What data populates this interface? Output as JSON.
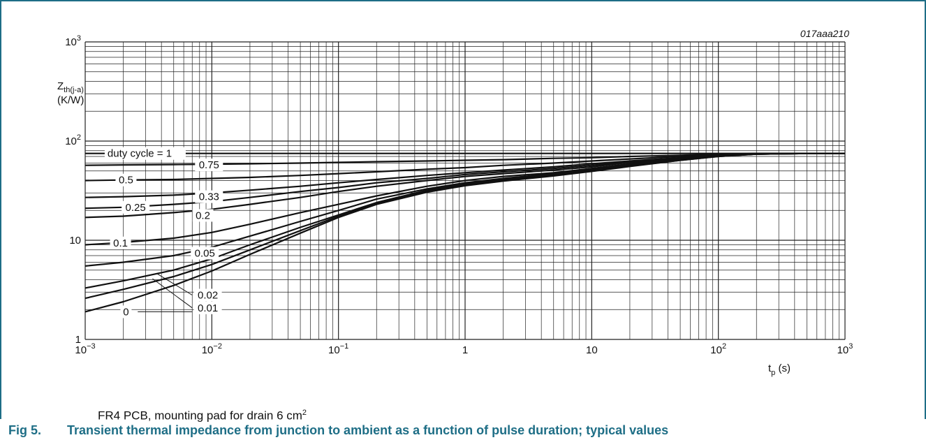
{
  "figure": {
    "number": "Fig 5.",
    "caption": "Transient thermal impedance from junction to ambient as a function of pulse duration; typical values",
    "note_main": "FR4 PCB, mounting pad for drain 6 cm",
    "note_sup": "2",
    "code": "017aaa210"
  },
  "colors": {
    "accent": "#1e6e86",
    "curve": "#111111",
    "grid": "#222222"
  },
  "chart_data": {
    "type": "line",
    "x_scale": "log",
    "y_scale": "log",
    "xlim": [
      0.001,
      1000
    ],
    "ylim": [
      1,
      1000
    ],
    "grid": true,
    "xlabel_main": "t",
    "xlabel_sub": "p",
    "xlabel_unit": "(s)",
    "ylabel_main": "Z",
    "ylabel_sub": "th(j-a)",
    "ylabel_unit": "(K/W)",
    "x_ticks": [
      {
        "v": 0.001,
        "base": "10",
        "exp": "−3"
      },
      {
        "v": 0.01,
        "base": "10",
        "exp": "−2"
      },
      {
        "v": 0.1,
        "base": "10",
        "exp": "−1"
      },
      {
        "v": 1,
        "base": "1",
        "exp": ""
      },
      {
        "v": 10,
        "base": "10",
        "exp": ""
      },
      {
        "v": 100,
        "base": "10",
        "exp": "2"
      },
      {
        "v": 1000,
        "base": "10",
        "exp": "3"
      }
    ],
    "y_ticks": [
      {
        "v": 1,
        "base": "1",
        "exp": ""
      },
      {
        "v": 10,
        "base": "10",
        "exp": ""
      },
      {
        "v": 100,
        "base": "10",
        "exp": "2"
      },
      {
        "v": 1000,
        "base": "10",
        "exp": "3"
      }
    ],
    "x": [
      0.001,
      0.002,
      0.005,
      0.01,
      0.02,
      0.05,
      0.1,
      0.2,
      0.5,
      1,
      2,
      5,
      10,
      20,
      50,
      100,
      200,
      500,
      1000
    ],
    "series": [
      {
        "name": "duty cycle = 1",
        "values": [
          75,
          75,
          75,
          75,
          75,
          75,
          75,
          75,
          75,
          75,
          75,
          75,
          75,
          75,
          75,
          75,
          75,
          75,
          75
        ]
      },
      {
        "name": "0.75",
        "values": [
          57,
          57.5,
          58,
          58.5,
          59,
          60,
          61,
          62,
          63,
          64,
          65,
          67,
          68,
          70,
          72,
          74,
          75,
          75,
          75
        ]
      },
      {
        "name": "0.5",
        "values": [
          40,
          40.5,
          41,
          42,
          43,
          45,
          47,
          49,
          52,
          54,
          57,
          60,
          63,
          66,
          70,
          73,
          75,
          75,
          75
        ]
      },
      {
        "name": "0.33",
        "values": [
          27,
          27.5,
          28.5,
          30,
          32,
          35,
          38,
          41,
          45,
          48,
          51,
          55,
          59,
          63,
          68,
          72,
          74.5,
          75,
          75
        ]
      },
      {
        "name": "0.25",
        "values": [
          21,
          21.5,
          23,
          24.5,
          27,
          31,
          34,
          38,
          42,
          46,
          49,
          53,
          57,
          62,
          67,
          72,
          74.5,
          75,
          75
        ]
      },
      {
        "name": "0.2",
        "values": [
          17,
          17.5,
          19,
          20.5,
          23,
          27,
          31,
          35,
          40,
          44,
          47,
          51,
          55,
          61,
          67,
          72,
          74.5,
          75,
          75
        ]
      },
      {
        "name": "0.1",
        "values": [
          9,
          9.5,
          10.5,
          12,
          14.5,
          19,
          23,
          28,
          35,
          40,
          44,
          48,
          53,
          59,
          66,
          71,
          74,
          75,
          75
        ]
      },
      {
        "name": "0.05",
        "values": [
          5.5,
          6,
          7,
          8.5,
          11,
          15.5,
          20,
          26,
          33,
          38,
          42,
          47,
          52,
          58,
          65,
          71,
          74,
          75,
          75
        ]
      },
      {
        "name": "0.02",
        "values": [
          3.3,
          3.9,
          5,
          6.5,
          9,
          13.5,
          18,
          24,
          32,
          37,
          41,
          46,
          51,
          57,
          65,
          71,
          74,
          75,
          75
        ]
      },
      {
        "name": "0.01",
        "values": [
          2.6,
          3.2,
          4.3,
          5.7,
          8,
          12.5,
          17.5,
          23.5,
          31,
          36,
          40,
          45,
          50,
          56,
          64,
          70,
          74,
          75,
          75
        ]
      },
      {
        "name": "0",
        "values": [
          1.9,
          2.4,
          3.5,
          4.9,
          7.2,
          11.8,
          17,
          23,
          30.5,
          35.5,
          39.5,
          44.5,
          49.5,
          55.5,
          64,
          70,
          74,
          75,
          75
        ]
      }
    ]
  }
}
